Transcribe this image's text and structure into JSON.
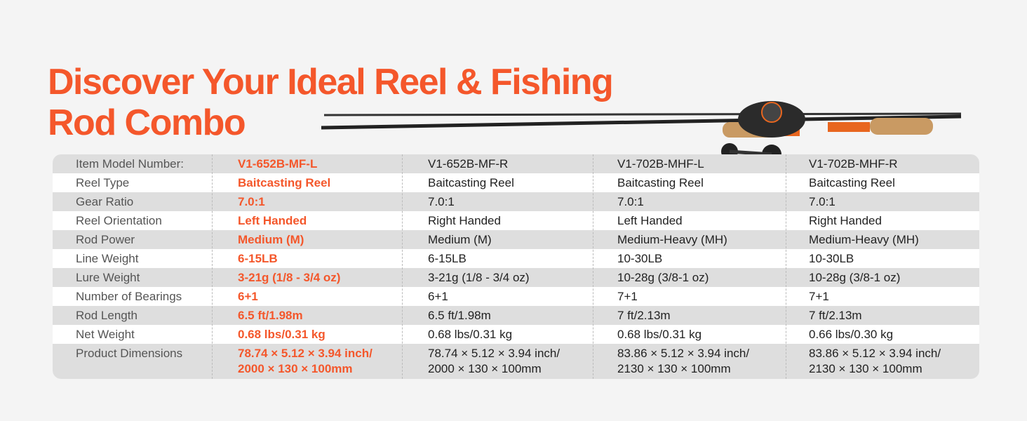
{
  "header": {
    "title": "Discover Your Ideal Reel & Fishing Rod Combo"
  },
  "table": {
    "rows": [
      [
        "Item Model Number:",
        "V1-652B-MF-L",
        "V1-652B-MF-R",
        "V1-702B-MHF-L",
        "V1-702B-MHF-R"
      ],
      [
        "Reel Type",
        "Baitcasting Reel",
        "Baitcasting Reel",
        "Baitcasting Reel",
        "Baitcasting Reel"
      ],
      [
        "Gear Ratio",
        "7.0:1",
        "7.0:1",
        "7.0:1",
        "7.0:1"
      ],
      [
        "Reel Orientation",
        "Left Handed",
        "Right Handed",
        "Left Handed",
        "Right Handed"
      ],
      [
        "Rod Power",
        "Medium (M)",
        "Medium (M)",
        "Medium-Heavy (MH)",
        "Medium-Heavy (MH)"
      ],
      [
        "Line Weight",
        "6-15LB",
        "6-15LB",
        "10-30LB",
        "10-30LB"
      ],
      [
        "Lure Weight",
        "3-21g (1/8 - 3/4 oz)",
        "3-21g (1/8 - 3/4 oz)",
        "10-28g (3/8-1 oz)",
        "10-28g (3/8-1 oz)"
      ],
      [
        "Number of Bearings",
        "6+1",
        "6+1",
        "7+1",
        "7+1"
      ],
      [
        "Rod Length",
        "6.5 ft/1.98m",
        "6.5 ft/1.98m",
        "7 ft/2.13m",
        "7 ft/2.13m"
      ],
      [
        "Net Weight",
        "0.68 lbs/0.31 kg",
        "0.68 lbs/0.31 kg",
        "0.68 lbs/0.31 kg",
        "0.66 lbs/0.30 kg"
      ],
      [
        "Product Dimensions",
        "78.74 × 5.12 × 3.94 inch/\n2000 × 130 × 100mm",
        "78.74 × 5.12 × 3.94 inch/\n2000 × 130 × 100mm",
        "83.86 × 5.12 × 3.94 inch/\n2130 × 130 × 100mm",
        "83.86 × 5.12 × 3.94 inch/\n2130 × 130 × 100mm"
      ]
    ]
  }
}
